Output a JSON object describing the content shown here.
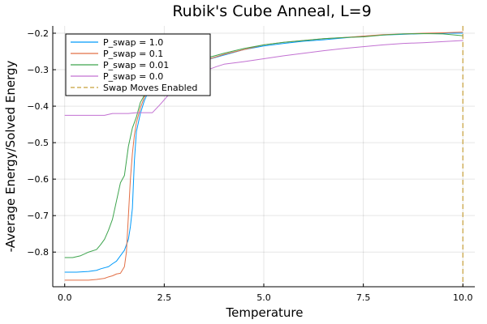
{
  "chart_data": {
    "type": "line",
    "title": "Rubik's Cube Anneal, L=9",
    "xlabel": "Temperature",
    "ylabel": "-Average Energy/Solved Energy",
    "xlim": [
      -0.3,
      10.3
    ],
    "ylim": [
      -0.895,
      -0.18
    ],
    "x_ticks": [
      0.0,
      2.5,
      5.0,
      7.5,
      10.0
    ],
    "x_tick_labels": [
      "0.0",
      "2.5",
      "5.0",
      "7.5",
      "10.0"
    ],
    "y_ticks": [
      -0.8,
      -0.7,
      -0.6,
      -0.5,
      -0.4,
      -0.3,
      -0.2
    ],
    "y_tick_labels": [
      "−0.8",
      "−0.7",
      "−0.6",
      "−0.5",
      "−0.4",
      "−0.3",
      "−0.2"
    ],
    "grid": true,
    "legend_position": "top-left",
    "series": [
      {
        "name": "P_swap = 1.0",
        "color": "#009AFA",
        "x": [
          0.0,
          0.3,
          0.6,
          0.8,
          0.9,
          1.0,
          1.1,
          1.2,
          1.3,
          1.4,
          1.5,
          1.55,
          1.6,
          1.65,
          1.7,
          1.75,
          1.8,
          1.9,
          2.0,
          2.1,
          2.2,
          2.4,
          2.6,
          2.8,
          3.0,
          3.5,
          4.0,
          4.5,
          5.0,
          5.5,
          6.0,
          6.5,
          7.0,
          7.5,
          8.0,
          8.5,
          9.0,
          9.5,
          10.0
        ],
        "y": [
          -0.855,
          -0.855,
          -0.853,
          -0.85,
          -0.846,
          -0.843,
          -0.84,
          -0.832,
          -0.825,
          -0.81,
          -0.795,
          -0.78,
          -0.765,
          -0.73,
          -0.68,
          -0.55,
          -0.47,
          -0.42,
          -0.385,
          -0.36,
          -0.345,
          -0.325,
          -0.31,
          -0.3,
          -0.29,
          -0.275,
          -0.26,
          -0.245,
          -0.235,
          -0.228,
          -0.222,
          -0.218,
          -0.213,
          -0.208,
          -0.205,
          -0.203,
          -0.201,
          -0.2,
          -0.2
        ]
      },
      {
        "name": "P_swap = 0.1",
        "color": "#E26F46",
        "x": [
          0.0,
          0.3,
          0.6,
          0.8,
          1.0,
          1.1,
          1.2,
          1.3,
          1.4,
          1.5,
          1.55,
          1.6,
          1.65,
          1.7,
          1.75,
          1.8,
          1.9,
          2.0,
          2.1,
          2.2,
          2.4,
          2.6,
          2.8,
          3.0,
          3.5,
          4.0,
          4.5,
          5.0,
          5.5,
          6.0,
          6.5,
          7.0,
          7.5,
          8.0,
          8.5,
          9.0,
          9.5,
          10.0
        ],
        "y": [
          -0.877,
          -0.877,
          -0.877,
          -0.875,
          -0.872,
          -0.868,
          -0.865,
          -0.86,
          -0.858,
          -0.84,
          -0.8,
          -0.7,
          -0.6,
          -0.53,
          -0.48,
          -0.445,
          -0.405,
          -0.375,
          -0.36,
          -0.345,
          -0.325,
          -0.31,
          -0.3,
          -0.292,
          -0.275,
          -0.258,
          -0.245,
          -0.232,
          -0.225,
          -0.22,
          -0.215,
          -0.212,
          -0.208,
          -0.204,
          -0.202,
          -0.2,
          -0.199,
          -0.197
        ]
      },
      {
        "name": "P_swap = 0.01",
        "color": "#3DA44D",
        "x": [
          0.0,
          0.2,
          0.4,
          0.6,
          0.8,
          0.9,
          1.0,
          1.1,
          1.2,
          1.3,
          1.4,
          1.5,
          1.6,
          1.7,
          1.8,
          1.9,
          2.0,
          2.1,
          2.2,
          2.4,
          2.6,
          2.8,
          3.0,
          3.5,
          4.0,
          4.5,
          5.0,
          5.5,
          6.0,
          6.5,
          7.0,
          7.5,
          8.0,
          8.5,
          9.0,
          9.5,
          10.0
        ],
        "y": [
          -0.815,
          -0.815,
          -0.81,
          -0.8,
          -0.793,
          -0.78,
          -0.765,
          -0.74,
          -0.71,
          -0.66,
          -0.61,
          -0.59,
          -0.51,
          -0.46,
          -0.43,
          -0.39,
          -0.37,
          -0.355,
          -0.34,
          -0.32,
          -0.305,
          -0.295,
          -0.285,
          -0.27,
          -0.255,
          -0.242,
          -0.232,
          -0.225,
          -0.22,
          -0.215,
          -0.212,
          -0.21,
          -0.205,
          -0.202,
          -0.201,
          -0.202,
          -0.207
        ]
      },
      {
        "name": "P_swap = 0.0",
        "color": "#C271D2",
        "x": [
          0.0,
          0.5,
          1.0,
          1.2,
          1.4,
          1.6,
          1.8,
          2.0,
          2.2,
          2.4,
          2.6,
          2.8,
          3.0,
          3.2,
          3.4,
          3.6,
          3.8,
          4.0,
          4.5,
          5.0,
          5.5,
          6.0,
          6.5,
          7.0,
          7.5,
          8.0,
          8.5,
          9.0,
          9.5,
          10.0
        ],
        "y": [
          -0.425,
          -0.425,
          -0.425,
          -0.42,
          -0.42,
          -0.42,
          -0.418,
          -0.418,
          -0.418,
          -0.395,
          -0.37,
          -0.355,
          -0.34,
          -0.325,
          -0.31,
          -0.3,
          -0.292,
          -0.285,
          -0.278,
          -0.27,
          -0.262,
          -0.255,
          -0.248,
          -0.242,
          -0.237,
          -0.232,
          -0.228,
          -0.226,
          -0.223,
          -0.22
        ]
      }
    ],
    "vline": {
      "name": "Swap Moves Enabled",
      "color": "#C8A03A",
      "x": 10.0,
      "style": "dashed"
    }
  }
}
